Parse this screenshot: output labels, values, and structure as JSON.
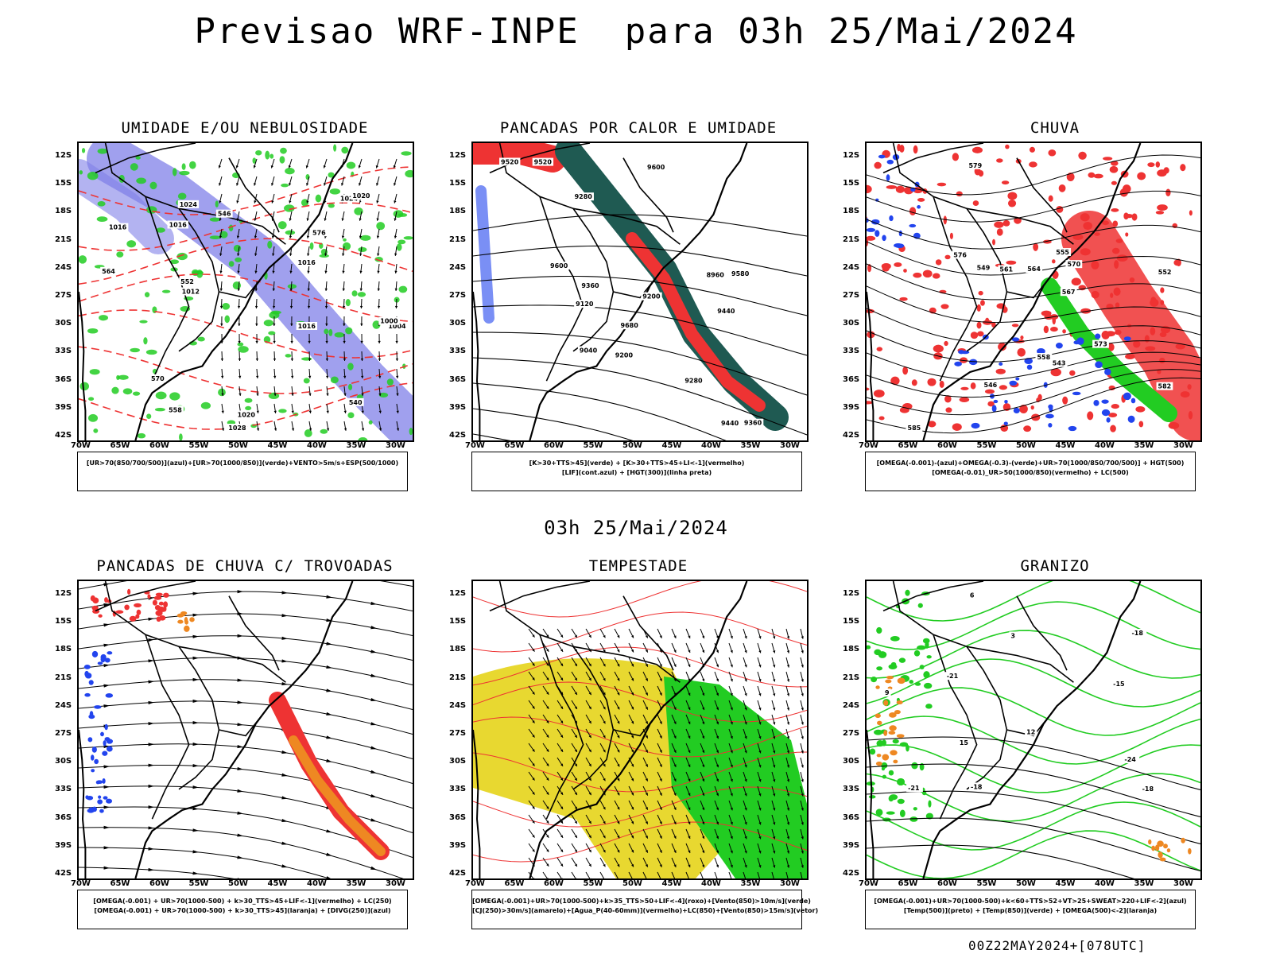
{
  "header": {
    "title": "Previsao WRF-INPE  para 03h 25/Mai/2024",
    "mid_time": "03h 25/Mai/2024",
    "footer_stamp": "00Z22MAY2024+[078UTC]"
  },
  "axes": {
    "lat_labels": [
      "12S",
      "15S",
      "18S",
      "21S",
      "24S",
      "27S",
      "30S",
      "33S",
      "36S",
      "39S",
      "42S"
    ],
    "lon_labels": [
      "70W",
      "65W",
      "60W",
      "55W",
      "50W",
      "45W",
      "40W",
      "35W",
      "30W"
    ]
  },
  "colors": {
    "green": "#22cc22",
    "blue": "#2244ee",
    "red": "#ee3333",
    "dark_teal": "#1f5a52",
    "orange": "#ee8822",
    "yellow": "#e8d830",
    "purple_shade": "#8080e8"
  },
  "panels": [
    {
      "id": "umidade",
      "title": "UMIDADE E/OU NEBULOSIDADE",
      "legend": [
        "[UR>70(850/700/500)](azul)+[UR>70(1000/850)](verde)+VENTO>5m/s+ESP(500/1000)"
      ],
      "contour_labels": [
        "1016",
        "1016",
        "1016",
        "1020",
        "1024",
        "1028",
        "1016",
        "1012",
        "1020",
        "1004",
        "1000",
        "1024",
        "576",
        "570",
        "564",
        "558",
        "552",
        "546",
        "540"
      ]
    },
    {
      "id": "pancadas",
      "title": "PANCADAS POR CALOR E UMIDADE",
      "legend": [
        "[K>30+TTS>45](verde) + [K>30+TTS>45+LI<-1](vermelho)",
        "[LIF](cont.azul) + [HGT(300)](linha preta)"
      ],
      "contour_labels": [
        "9680",
        "9600",
        "9520",
        "9440",
        "9360",
        "9280",
        "9200",
        "9120",
        "9040",
        "8960",
        "9580",
        "9600",
        "9520",
        "9440",
        "9360",
        "9280",
        "9200"
      ]
    },
    {
      "id": "chuva",
      "title": "CHUVA",
      "legend": [
        "[OMEGA(-0.001)-(azul)+OMEGA(-0.3)-(verde)+UR>70(1000/850/700/500)] + HGT(500)",
        "[OMEGA(-0.01)_UR>50(1000/850)(vermelho) + LC(500)"
      ],
      "contour_labels": [
        "585",
        "582",
        "579",
        "576",
        "573",
        "570",
        "567",
        "564",
        "561",
        "558",
        "555",
        "552",
        "549",
        "546",
        "543"
      ]
    },
    {
      "id": "trovoadas",
      "title": "PANCADAS DE CHUVA C/ TROVOADAS",
      "legend": [
        "[OMEGA(-0.001) + UR>70(1000-500) + k>30_TTS>45+LIF<-1](vermelho) + LC(250)",
        "[OMEGA(-0.001) + UR>70(1000-500) + k>30_TTS>45](laranja) + [DIVG(250)](azul)"
      ],
      "contour_labels": []
    },
    {
      "id": "tempestade",
      "title": "TEMPESTADE",
      "legend": [
        "[OMEGA(-0.001)+UR>70(1000-500)+k>35_TTS>50+LIF<-4](roxo)+[Vento(850)>10m/s](verde)",
        "[CJ(250)>30m/s](amarelo)+[Agua_P(40-60mm)](vermelho)+LC(850)+[Vento(850)>15m/s](vetor)"
      ],
      "contour_labels": []
    },
    {
      "id": "granizo",
      "title": "GRANIZO",
      "legend": [
        "[OMEGA(-0.001)+UR>70(1000-500)+k<60+TTS>52+VT>25+SWEAT>220+LIF<-2](azul)",
        "[Temp(500)](preto) + [Temp(850)](verde) + [OMEGA(500)<-2](laranja)"
      ],
      "contour_labels": [
        "-18",
        "-18",
        "-21",
        "-24",
        "-15",
        "-18",
        "-21",
        "12",
        "15",
        "9",
        "6",
        "3"
      ]
    }
  ]
}
